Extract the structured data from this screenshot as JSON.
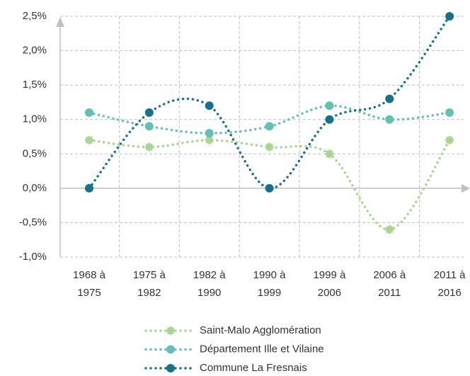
{
  "chart_data": {
    "type": "line",
    "categories": [
      "1968 à 1975",
      "1975 à 1982",
      "1982 à 1990",
      "1990 à 1999",
      "1999 à 2006",
      "2006 à 2011",
      "2011 à 2016"
    ],
    "series": [
      {
        "name": "Saint-Malo Agglomération",
        "color": "#a8d58f",
        "values": [
          0.7,
          0.6,
          0.7,
          0.6,
          0.5,
          -0.6,
          0.7
        ]
      },
      {
        "name": "Département Ille et Vilaine",
        "color": "#62c1b3",
        "values": [
          1.1,
          0.9,
          0.8,
          0.9,
          1.2,
          1.0,
          1.1
        ]
      },
      {
        "name": "Commune La Fresnais",
        "color": "#17718a",
        "values": [
          0.0,
          1.1,
          1.2,
          0.0,
          1.0,
          1.3,
          2.5
        ]
      }
    ],
    "ylim": [
      -1.0,
      2.5
    ],
    "yticks": [
      {
        "value": -1.0,
        "label": "-1,0%"
      },
      {
        "value": -0.5,
        "label": "-0,5%"
      },
      {
        "value": 0.0,
        "label": "0,0%"
      },
      {
        "value": 0.5,
        "label": "0,5%"
      },
      {
        "value": 1.0,
        "label": "1,0%"
      },
      {
        "value": 1.5,
        "label": "1,5%"
      },
      {
        "value": 2.0,
        "label": "2,0%"
      },
      {
        "value": 2.5,
        "label": "2,5%"
      }
    ],
    "grid": true,
    "smooth": true,
    "legend": "bottom"
  }
}
